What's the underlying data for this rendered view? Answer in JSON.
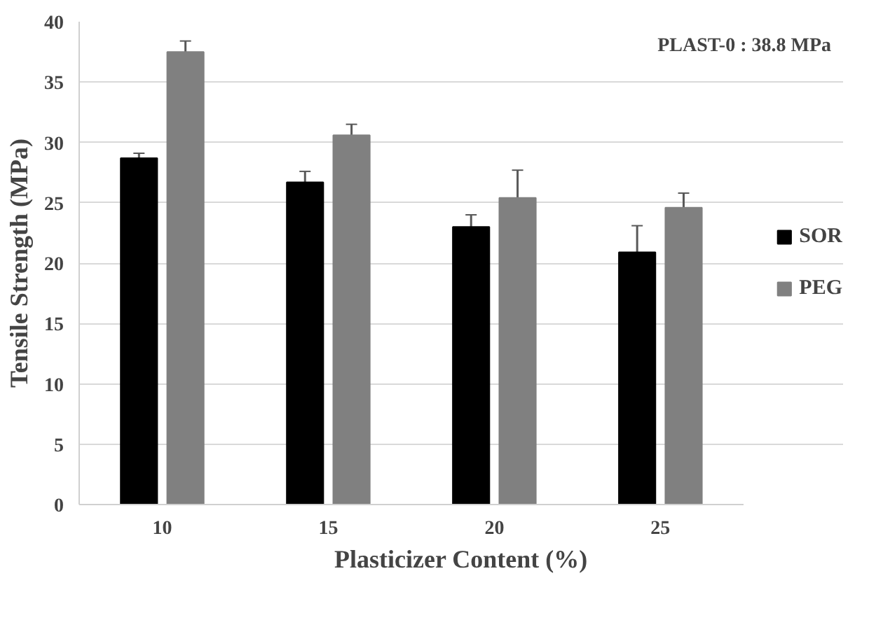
{
  "chart_data": {
    "type": "bar",
    "xlabel": "Plasticizer Content (%)",
    "ylabel": "Tensile Strength (MPa)",
    "categories": [
      "10",
      "15",
      "20",
      "25"
    ],
    "series": [
      {
        "name": "SOR",
        "color": "#000000",
        "values": [
          28.7,
          26.7,
          23.0,
          20.9
        ],
        "errors": [
          0.4,
          0.9,
          1.0,
          2.2
        ]
      },
      {
        "name": "PEG",
        "color": "#808080",
        "values": [
          37.5,
          30.6,
          25.4,
          24.6
        ],
        "errors": [
          0.9,
          0.9,
          2.3,
          1.2
        ]
      }
    ],
    "ylim": [
      0,
      40
    ],
    "yticks": [
      0,
      5,
      10,
      15,
      20,
      25,
      30,
      35,
      40
    ],
    "grid": "y",
    "legend": "right",
    "annotations": [
      "PLAST-0  : 38.8 MPa"
    ]
  }
}
